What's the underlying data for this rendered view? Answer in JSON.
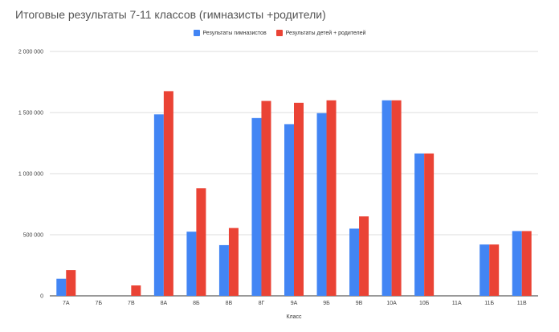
{
  "chart_data": {
    "type": "bar",
    "title": "Итоговые результаты 7-11 классов (гимназисты +родители)",
    "xlabel": "Класс",
    "ylabel": "",
    "ylim": [
      0,
      2000000
    ],
    "yticks": [
      0,
      500000,
      1000000,
      1500000,
      2000000
    ],
    "ytick_labels": [
      "0",
      "500 000",
      "1 000 000",
      "1 500 000",
      "2 000 000"
    ],
    "grid": true,
    "legend_position": "top",
    "categories": [
      "7А",
      "7Б",
      "7В",
      "8А",
      "8Б",
      "8В",
      "8Г",
      "9А",
      "9Б",
      "9В",
      "10А",
      "10Б",
      "11А",
      "11Б",
      "11В"
    ],
    "series": [
      {
        "name": "Результаты гимназистов",
        "color": "#4285f4",
        "values": [
          140000,
          0,
          0,
          1485000,
          525000,
          415000,
          1455000,
          1405000,
          1495000,
          550000,
          1600000,
          1165000,
          0,
          420000,
          530000
        ]
      },
      {
        "name": "Результаты детей + родителей",
        "color": "#ea4335",
        "values": [
          210000,
          0,
          85000,
          1675000,
          880000,
          555000,
          1595000,
          1580000,
          1600000,
          650000,
          1600000,
          1165000,
          0,
          420000,
          530000
        ]
      }
    ]
  }
}
